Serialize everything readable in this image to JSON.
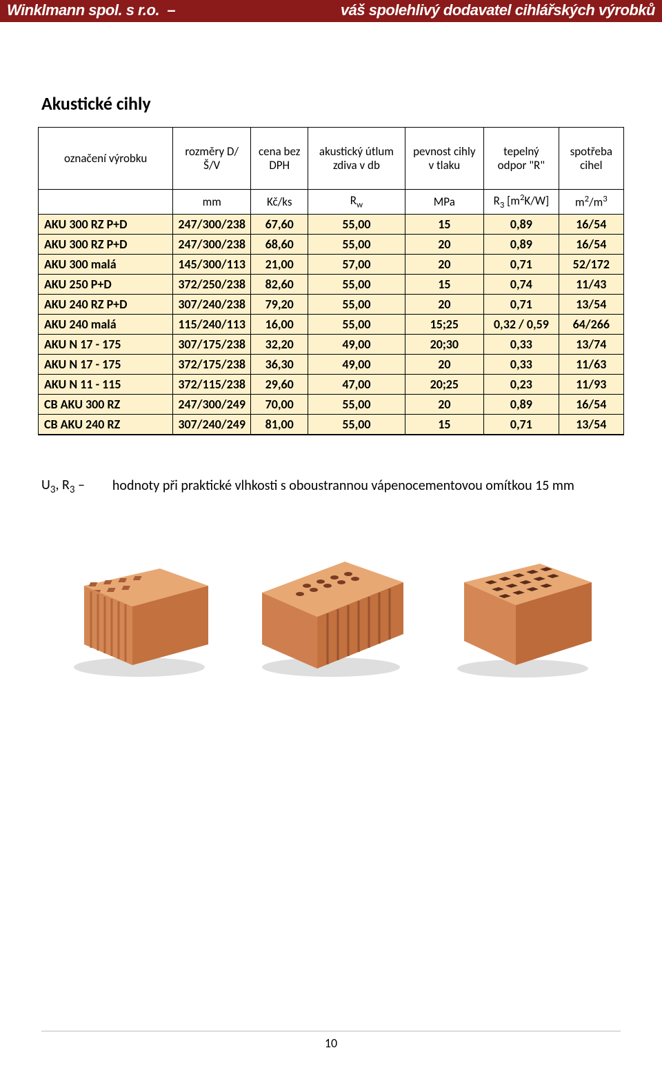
{
  "header": {
    "left": "Winklmann spol. s r.o.",
    "sep": "–",
    "right": "váš spolehlivý dodavatel cihlářských výrobků"
  },
  "title": "Akustické cihly",
  "table": {
    "header1": [
      "označení výrobku",
      "rozměry D/Š/V",
      "cena bez DPH",
      "akustický útlum zdiva v db",
      "pevnost cihly v tlaku",
      "tepelný odpor \"R\"",
      "spotřeba cihel"
    ],
    "header2": [
      "",
      "mm",
      "Kč/ks",
      "R",
      "MPa",
      "R₃ [m²K/W]",
      "m²/m³"
    ],
    "header2_sub": "w",
    "rows": [
      [
        "AKU 300 RZ P+D",
        "247/300/238",
        "67,60",
        "55,00",
        "15",
        "0,89",
        "16/54"
      ],
      [
        "AKU 300 RZ P+D",
        "247/300/238",
        "68,60",
        "55,00",
        "20",
        "0,89",
        "16/54"
      ],
      [
        "AKU 300 malá",
        "145/300/113",
        "21,00",
        "57,00",
        "20",
        "0,71",
        "52/172"
      ],
      [
        "AKU 250 P+D",
        "372/250/238",
        "82,60",
        "55,00",
        "15",
        "0,74",
        "11/43"
      ],
      [
        "AKU 240 RZ P+D",
        "307/240/238",
        "79,20",
        "55,00",
        "20",
        "0,71",
        "13/54"
      ],
      [
        "AKU 240 malá",
        "115/240/113",
        "16,00",
        "55,00",
        "15;25",
        "0,32 / 0,59",
        "64/266"
      ],
      [
        "AKU N 17 - 175",
        "307/175/238",
        "32,20",
        "49,00",
        "20;30",
        "0,33",
        "13/74"
      ],
      [
        "AKU N 17 - 175",
        "372/175/238",
        "36,30",
        "49,00",
        "20",
        "0,33",
        "11/63"
      ],
      [
        "AKU N 11 - 115",
        "372/115/238",
        "29,60",
        "47,00",
        "20;25",
        "0,23",
        "11/93"
      ],
      [
        "CB AKU 300 RZ",
        "247/300/249",
        "70,00",
        "55,00",
        "20",
        "0,89",
        "16/54"
      ],
      [
        "CB AKU 240 RZ",
        "307/240/249",
        "81,00",
        "55,00",
        "15",
        "0,71",
        "13/54"
      ]
    ],
    "row_bg": "#fdf2cc",
    "border_color": "#000000"
  },
  "note": {
    "symbol": "U₃, R₃ –",
    "text": "hodnoty při praktické vlhkosti s oboustrannou vápenocementovou omítkou 15 mm"
  },
  "page_number": "10",
  "brick_colors": {
    "face_light": "#e09b6a",
    "face_mid": "#cf7f4f",
    "face_dark": "#a85d38",
    "hole": "#5a2c18",
    "shadow": "#bfbfbf"
  }
}
